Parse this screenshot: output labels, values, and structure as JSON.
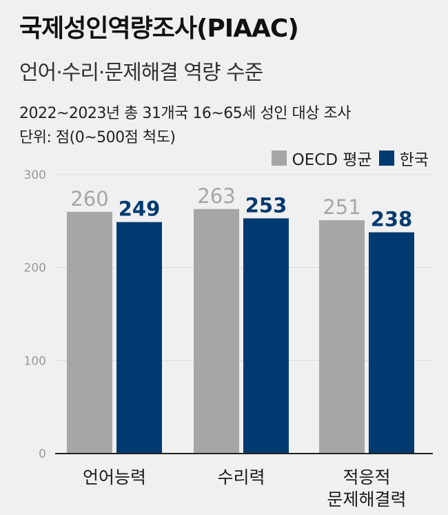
{
  "header": {
    "title": "국제성인역량조사(PIAAC)",
    "subtitle": "언어·수리·문제해결 역량 수준",
    "note_survey": "2022~2023년 총 31개국 16~65세 성인 대상 조사",
    "note_unit": "단위: 점(0~500점 척도)"
  },
  "legend": [
    {
      "label": "OECD 평균",
      "color": "#a6a6a6"
    },
    {
      "label": "한국",
      "color": "#003a70"
    }
  ],
  "chart_data": {
    "type": "bar",
    "categories": [
      [
        "언어능력"
      ],
      [
        "수리력"
      ],
      [
        "적응적",
        "문제해결력"
      ]
    ],
    "series": [
      {
        "name": "OECD 평균",
        "values": [
          260,
          263,
          251
        ],
        "color": "#a6a6a6"
      },
      {
        "name": "한국",
        "values": [
          249,
          253,
          238
        ],
        "color": "#003a70"
      }
    ],
    "y_ticks": [
      0,
      100,
      200,
      300
    ],
    "ylim": [
      0,
      300
    ],
    "grid": true,
    "legend_position": "top-right"
  }
}
